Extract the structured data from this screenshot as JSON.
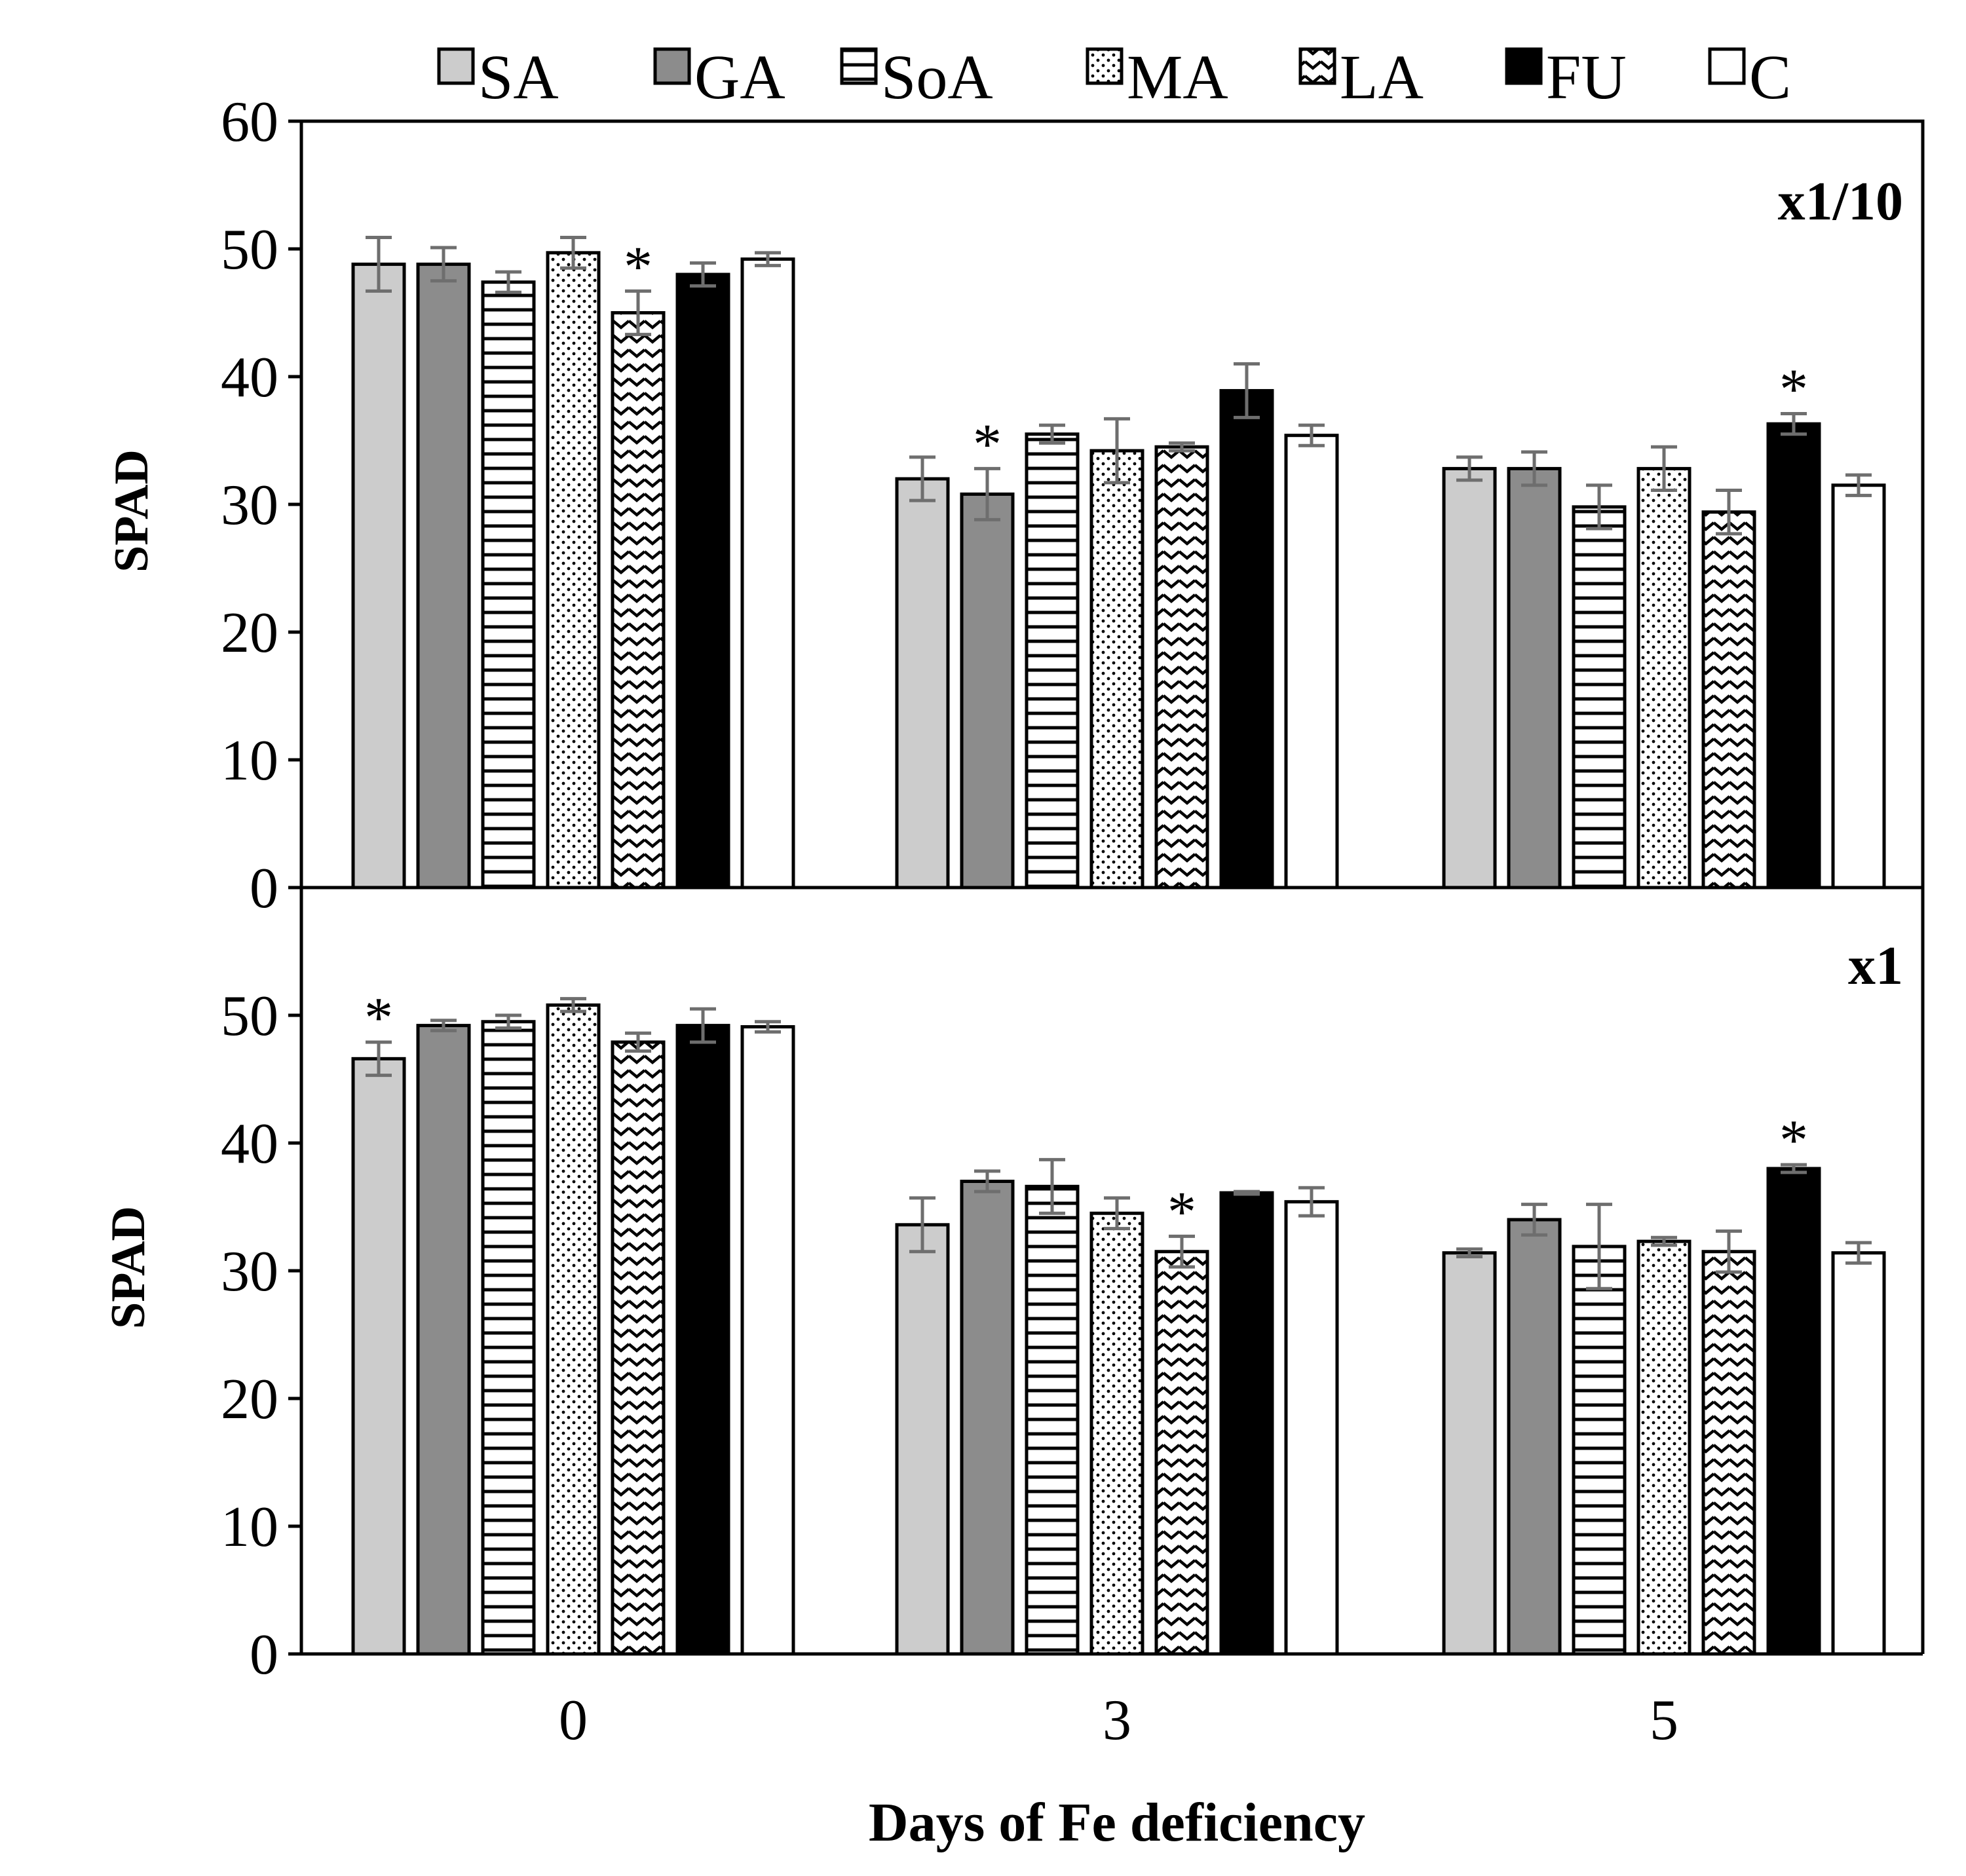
{
  "legend": {
    "items": [
      {
        "key": "SA",
        "label": "SA",
        "fill": "#cccccc",
        "pattern": "solid"
      },
      {
        "key": "GA",
        "label": "GA",
        "fill": "#8c8c8c",
        "pattern": "solid"
      },
      {
        "key": "SoA",
        "label": "SoA",
        "fill": "#ffffff",
        "pattern": "hlines"
      },
      {
        "key": "MA",
        "label": "MA",
        "fill": "#ffffff",
        "pattern": "dots"
      },
      {
        "key": "LA",
        "label": "LA",
        "fill": "#ffffff",
        "pattern": "zigzag"
      },
      {
        "key": "FU",
        "label": "FU",
        "fill": "#000000",
        "pattern": "solid"
      },
      {
        "key": "C",
        "label": "C",
        "fill": "#ffffff",
        "pattern": "solid"
      }
    ]
  },
  "colors": {
    "axis": "#000000",
    "error_bar": "#6e6e6e",
    "bar_stroke": "#000000"
  },
  "x_axis": {
    "label": "Days of Fe deficiency",
    "ticks": [
      "0",
      "3",
      "5"
    ]
  },
  "chart_data": [
    {
      "type": "bar",
      "panel": "top",
      "title": "x1/10",
      "ylabel": "SPAD",
      "ylim": [
        0,
        60
      ],
      "yticks": [
        "0",
        "10",
        "20",
        "30",
        "40",
        "50",
        "60"
      ],
      "categories": [
        "0",
        "3",
        "5"
      ],
      "series": [
        {
          "name": "SA",
          "values": [
            48.8,
            32.0,
            32.8
          ],
          "errors": [
            2.1,
            1.7,
            0.9
          ],
          "significant": [
            false,
            false,
            false
          ]
        },
        {
          "name": "GA",
          "values": [
            48.8,
            30.8,
            32.8
          ],
          "errors": [
            1.3,
            2.0,
            1.3
          ],
          "significant": [
            false,
            true,
            false
          ]
        },
        {
          "name": "SoA",
          "values": [
            47.4,
            35.5,
            29.8
          ],
          "errors": [
            0.8,
            0.7,
            1.7
          ],
          "significant": [
            false,
            false,
            false
          ]
        },
        {
          "name": "MA",
          "values": [
            49.7,
            34.2,
            32.8
          ],
          "errors": [
            1.2,
            2.5,
            1.7
          ],
          "significant": [
            false,
            false,
            false
          ]
        },
        {
          "name": "LA",
          "values": [
            45.0,
            34.5,
            29.4
          ],
          "errors": [
            1.7,
            0.3,
            1.7
          ],
          "significant": [
            true,
            false,
            false
          ]
        },
        {
          "name": "FU",
          "values": [
            48.0,
            38.9,
            36.3
          ],
          "errors": [
            0.9,
            2.1,
            0.8
          ],
          "significant": [
            false,
            false,
            true
          ]
        },
        {
          "name": "C",
          "values": [
            49.2,
            35.4,
            31.5
          ],
          "errors": [
            0.5,
            0.8,
            0.8
          ],
          "significant": [
            false,
            false,
            false
          ]
        }
      ]
    },
    {
      "type": "bar",
      "panel": "bottom",
      "title": "x1",
      "ylabel": "SPAD",
      "ylim": [
        0,
        60
      ],
      "yticks": [
        "0",
        "10",
        "20",
        "30",
        "40",
        "50"
      ],
      "categories": [
        "0",
        "3",
        "5"
      ],
      "series": [
        {
          "name": "SA",
          "values": [
            46.6,
            33.6,
            31.4
          ],
          "errors": [
            1.3,
            2.1,
            0.3
          ],
          "significant": [
            true,
            false,
            false
          ]
        },
        {
          "name": "GA",
          "values": [
            49.2,
            37.0,
            34.0
          ],
          "errors": [
            0.4,
            0.8,
            1.2
          ],
          "significant": [
            false,
            false,
            false
          ]
        },
        {
          "name": "SoA",
          "values": [
            49.5,
            36.6,
            31.9
          ],
          "errors": [
            0.5,
            2.1,
            3.3
          ],
          "significant": [
            false,
            false,
            false
          ]
        },
        {
          "name": "MA",
          "values": [
            50.8,
            34.5,
            32.3
          ],
          "errors": [
            0.5,
            1.2,
            0.3
          ],
          "significant": [
            false,
            false,
            false
          ]
        },
        {
          "name": "LA",
          "values": [
            47.9,
            31.5,
            31.5
          ],
          "errors": [
            0.7,
            1.2,
            1.6
          ],
          "significant": [
            false,
            true,
            false
          ]
        },
        {
          "name": "FU",
          "values": [
            49.2,
            36.1,
            38.0
          ],
          "errors": [
            1.3,
            0.1,
            0.3
          ],
          "significant": [
            false,
            false,
            true
          ]
        },
        {
          "name": "C",
          "values": [
            49.1,
            35.4,
            31.4
          ],
          "errors": [
            0.4,
            1.1,
            0.8
          ],
          "significant": [
            false,
            false,
            false
          ]
        }
      ]
    }
  ],
  "annotations": {
    "significance_marker": "*"
  }
}
